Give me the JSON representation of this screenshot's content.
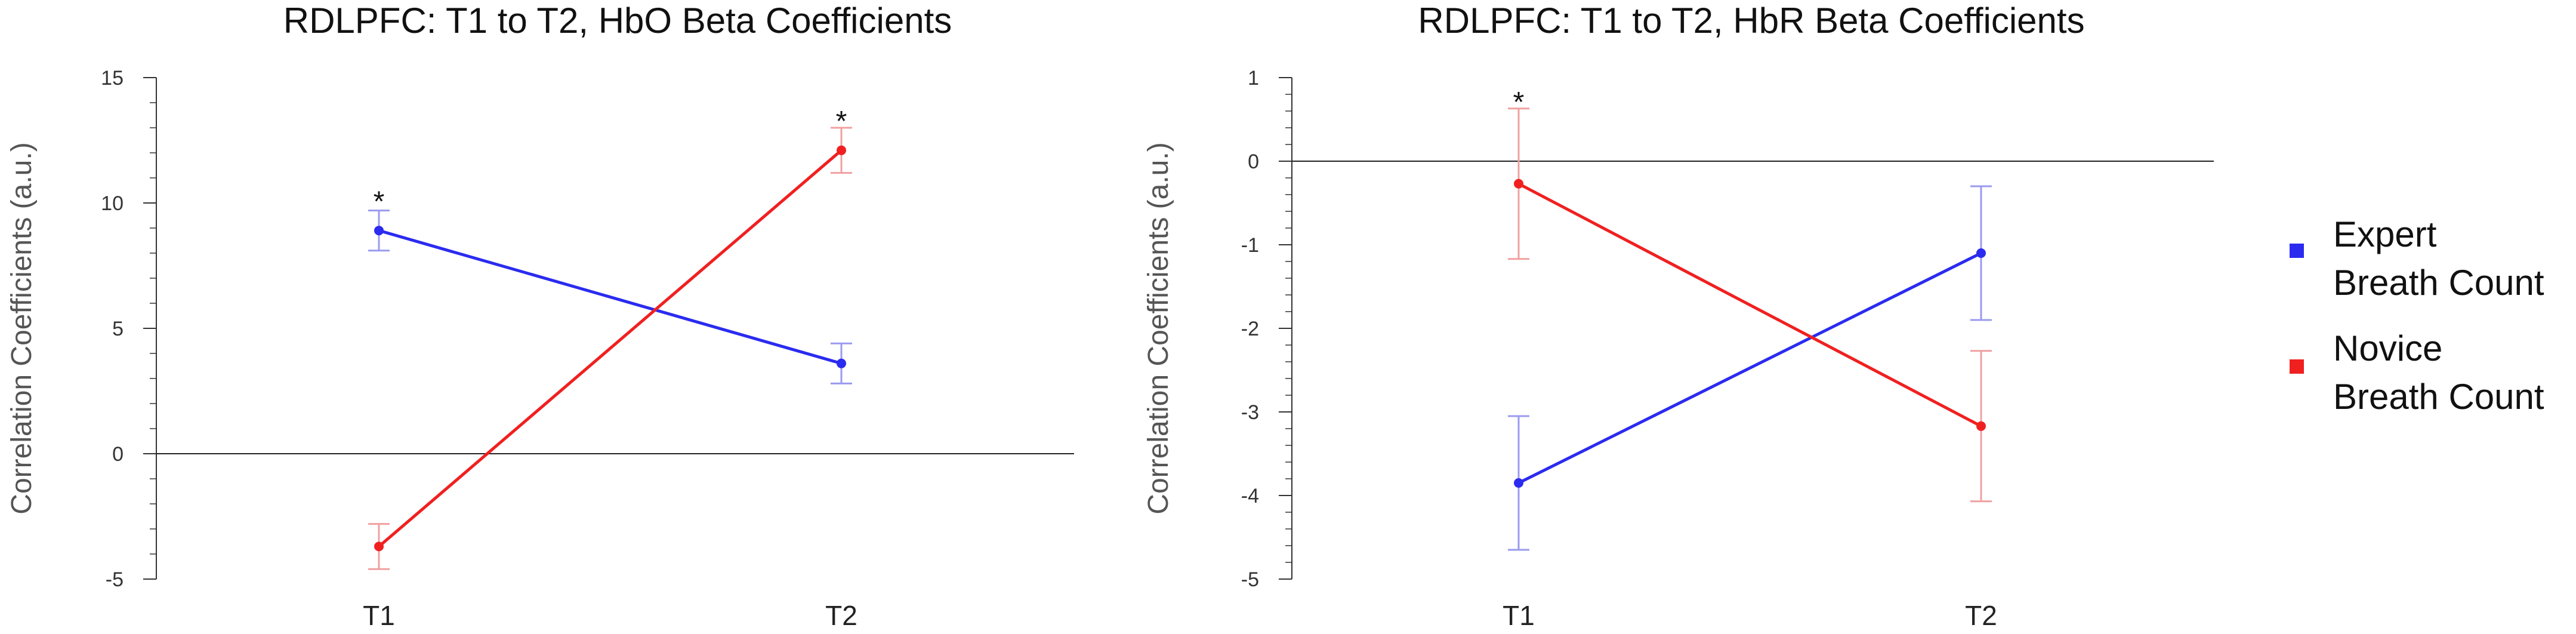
{
  "chart_data": [
    {
      "type": "line",
      "title": "RDLPFC: T1 to T2, HbO Beta Coefficients",
      "xlabel": "",
      "ylabel": "Correlation Coefficients (a.u.)",
      "categories": [
        "T1",
        "T2"
      ],
      "ylim": [
        -5,
        15
      ],
      "yticks": [
        -5,
        0,
        5,
        10,
        15
      ],
      "reference_line": 0,
      "series": [
        {
          "name": "Expert Breath Count",
          "color": "#2b2bf0",
          "errorbar_color": "#9a9af0",
          "values": [
            8.9,
            3.6
          ],
          "lower": [
            8.1,
            2.8
          ],
          "upper": [
            9.7,
            4.4
          ]
        },
        {
          "name": "Novice Breath Count",
          "color": "#f02020",
          "errorbar_color": "#f0a0a0",
          "values": [
            -3.7,
            12.1
          ],
          "lower": [
            -4.6,
            11.2
          ],
          "upper": [
            -2.8,
            13.0
          ]
        }
      ],
      "annotations": [
        {
          "text": "*",
          "category": "T1",
          "y": 10.2
        },
        {
          "text": "*",
          "category": "T2",
          "y": 13.4
        }
      ]
    },
    {
      "type": "line",
      "title": "RDLPFC: T1 to T2, HbR Beta Coefficients",
      "xlabel": "",
      "ylabel": "Correlation Coefficients (a.u.)",
      "categories": [
        "T1",
        "T2"
      ],
      "ylim": [
        -5,
        1
      ],
      "yticks": [
        -5,
        -4,
        -3,
        -2,
        -1,
        0,
        1
      ],
      "reference_line": 0,
      "series": [
        {
          "name": "Expert Breath Count",
          "color": "#2b2bf0",
          "errorbar_color": "#9a9af0",
          "values": [
            -3.85,
            -1.1
          ],
          "lower": [
            -4.65,
            -1.9
          ],
          "upper": [
            -3.05,
            -0.3
          ]
        },
        {
          "name": "Novice Breath Count",
          "color": "#f02020",
          "errorbar_color": "#f0a0a0",
          "values": [
            -0.27,
            -3.17
          ],
          "lower": [
            -1.17,
            -4.07
          ],
          "upper": [
            0.63,
            -2.27
          ]
        }
      ],
      "annotations": [
        {
          "text": "*",
          "category": "T1",
          "y": 0.75
        }
      ]
    }
  ],
  "legend": {
    "placement": "right",
    "items": [
      {
        "line1": "Expert",
        "line2": "Breath Count",
        "color": "#2b2bf0"
      },
      {
        "line1": "Novice",
        "line2": "Breath Count",
        "color": "#f02020"
      }
    ]
  }
}
